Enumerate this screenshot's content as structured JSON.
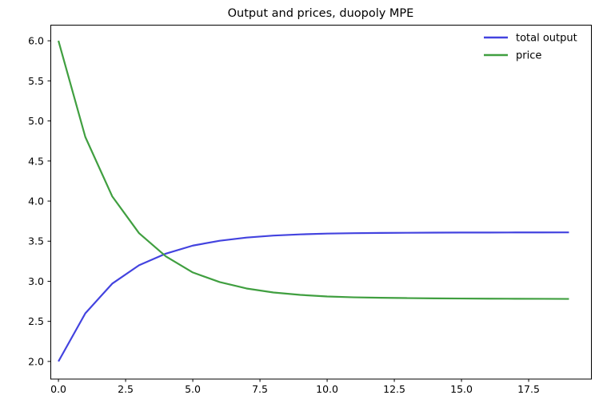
{
  "figure": {
    "background": "#ffffff",
    "text_color": "#000000"
  },
  "chart_data": {
    "type": "line",
    "title": "Output and prices, duopoly MPE",
    "xlabel": "",
    "ylabel": "",
    "grid": false,
    "legend_position": "upper right",
    "xlim": [
      -0.3,
      19.85
    ],
    "ylim": [
      1.78,
      6.2
    ],
    "x": [
      0,
      1,
      2,
      3,
      4,
      5,
      6,
      7,
      8,
      9,
      10,
      11,
      12,
      13,
      14,
      15,
      16,
      17,
      18,
      19
    ],
    "series": [
      {
        "name": "total output",
        "color": "#4343df",
        "values": [
          2.0,
          2.6,
          2.97,
          3.2,
          3.345,
          3.445,
          3.505,
          3.545,
          3.57,
          3.585,
          3.595,
          3.6,
          3.603,
          3.605,
          3.607,
          3.608,
          3.608,
          3.609,
          3.609,
          3.61
        ]
      },
      {
        "name": "price",
        "color": "#409f40",
        "values": [
          6.0,
          4.8,
          4.06,
          3.6,
          3.31,
          3.11,
          2.99,
          2.91,
          2.86,
          2.83,
          2.81,
          2.8,
          2.794,
          2.79,
          2.787,
          2.785,
          2.783,
          2.782,
          2.781,
          2.78
        ]
      }
    ],
    "xticks": {
      "values": [
        0,
        2.5,
        5,
        7.5,
        10,
        12.5,
        15,
        17.5
      ],
      "labels": [
        "0.0",
        "2.5",
        "5.0",
        "7.5",
        "10.0",
        "12.5",
        "15.0",
        "17.5"
      ]
    },
    "yticks": {
      "values": [
        2.0,
        2.5,
        3.0,
        3.5,
        4.0,
        4.5,
        5.0,
        5.5,
        6.0
      ],
      "labels": [
        "2.0",
        "2.5",
        "3.0",
        "3.5",
        "4.0",
        "4.5",
        "5.0",
        "5.5",
        "6.0"
      ]
    }
  }
}
